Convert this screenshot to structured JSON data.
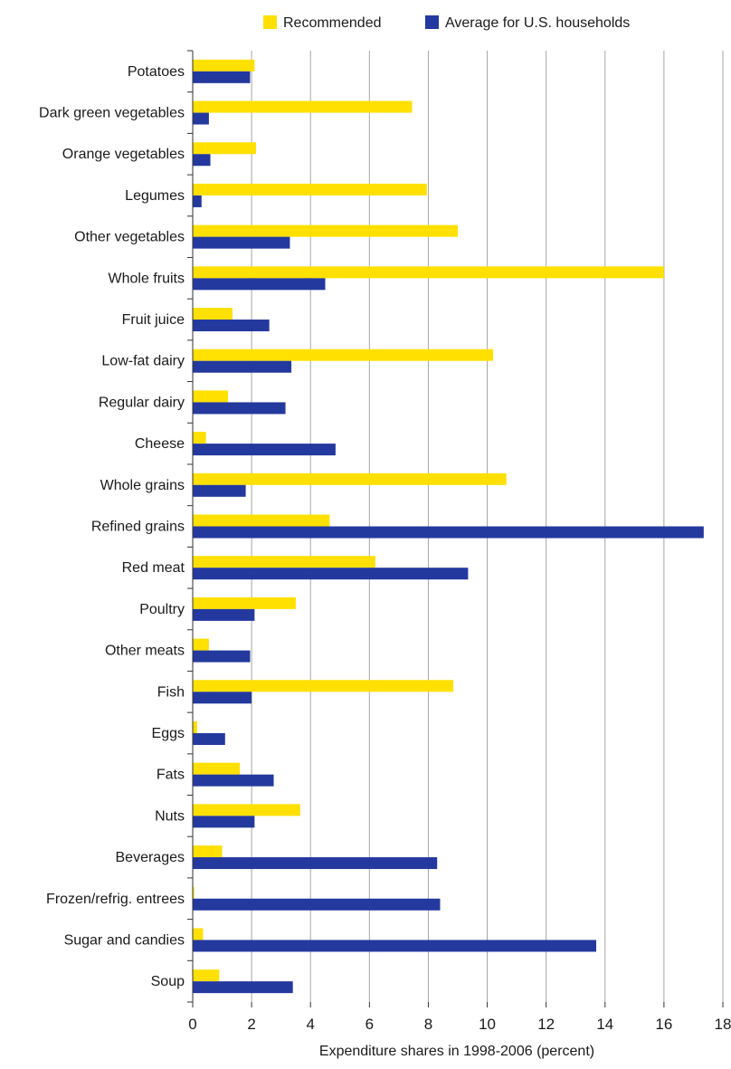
{
  "chart_data": {
    "type": "bar",
    "orientation": "horizontal",
    "title": "",
    "xlabel": "Expenditure shares in 1998-2006 (percent)",
    "ylabel": "",
    "xlim": [
      0,
      18
    ],
    "xticks": [
      0,
      2,
      4,
      6,
      8,
      10,
      12,
      14,
      16,
      18
    ],
    "grid": "vertical",
    "legend_position": "top-right",
    "categories": [
      "Potatoes",
      "Dark green vegetables",
      "Orange vegetables",
      "Legumes",
      "Other vegetables",
      "Whole fruits",
      "Fruit juice",
      "Low-fat dairy",
      "Regular dairy",
      "Cheese",
      "Whole grains",
      "Refined grains",
      "Red meat",
      "Poultry",
      "Other meats",
      "Fish",
      "Eggs",
      "Fats",
      "Nuts",
      "Beverages",
      "Frozen/refrig. entrees",
      "Sugar and candies",
      "Soup"
    ],
    "series": [
      {
        "name": "Recommended",
        "color": "#FFE000",
        "values": [
          2.1,
          7.45,
          2.15,
          7.95,
          9.0,
          16.0,
          1.35,
          10.2,
          1.2,
          0.45,
          10.65,
          4.65,
          6.2,
          3.5,
          0.55,
          8.85,
          0.15,
          1.6,
          3.65,
          1.0,
          0.05,
          0.35,
          0.9
        ]
      },
      {
        "name": "Average for U.S. households",
        "color": "#24399E",
        "values": [
          1.95,
          0.55,
          0.6,
          0.3,
          3.3,
          4.5,
          2.6,
          3.35,
          3.15,
          4.85,
          1.8,
          17.35,
          9.35,
          2.1,
          1.95,
          2.0,
          1.1,
          2.75,
          2.1,
          8.3,
          8.4,
          13.7,
          3.4
        ]
      }
    ]
  }
}
